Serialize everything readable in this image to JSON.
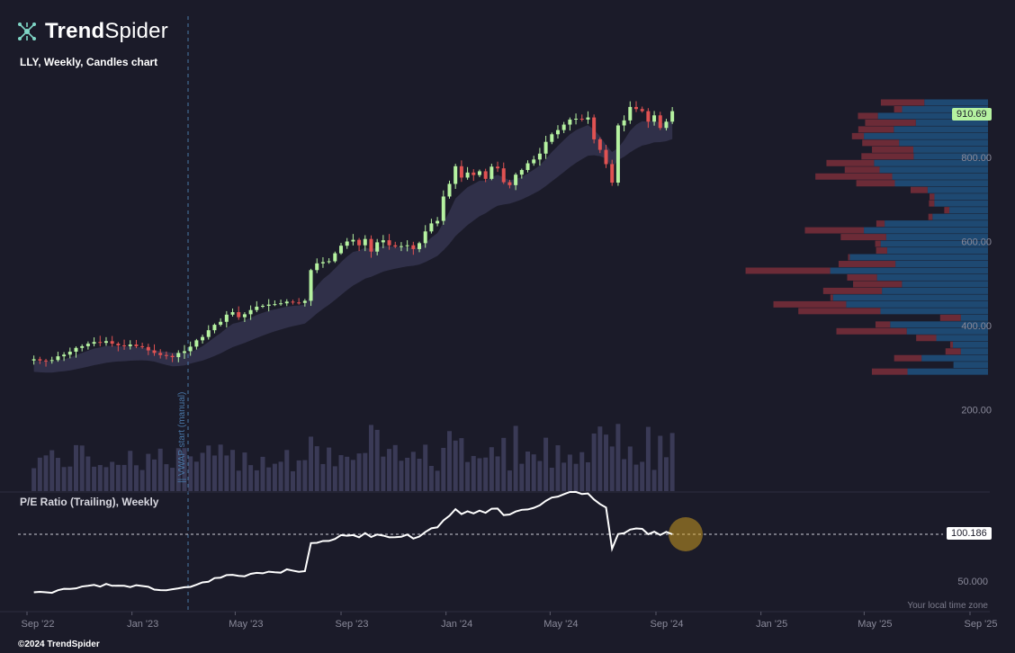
{
  "branding": {
    "logo_bold": "Trend",
    "logo_light": "Spider",
    "copyright": "©2024 TrendSpider"
  },
  "chart_title": "LLY, Weekly, Candles chart",
  "pe_title": "P/E Ratio (Trailing), Weekly",
  "timezone_note": "Your local time zone",
  "vwap_label": "|| VWAP start (manual)",
  "last_price_label": "910.69",
  "last_pe_label": "100.186",
  "colors": {
    "background": "#1b1b29",
    "up": "#b5f2a0",
    "down": "#e05252",
    "ribbon": "#33334d",
    "volume": "#3a3a56",
    "profile_blue": "#1f4f7a",
    "profile_red": "#7a2e3a",
    "pe_line": "#ffffff",
    "highlight": "#d9a520"
  },
  "chart_data": [
    {
      "type": "candlestick",
      "title": "LLY, Weekly, Candles chart",
      "y_ticks": [
        "200.00",
        "400.00",
        "600.00",
        "800.00"
      ],
      "y_tick_values": [
        200,
        400,
        600,
        800
      ],
      "x_ticks": [
        "Sep '22",
        "Jan '23",
        "May '23",
        "Sep '23",
        "Jan '24",
        "May '24",
        "Sep '24",
        "Jan '25",
        "May '25",
        "Sep '25"
      ],
      "x_range": [
        "2022-09-01",
        "2025-09-01"
      ],
      "close": [
        320,
        317,
        316,
        318,
        327,
        331,
        338,
        347,
        351,
        357,
        361,
        359,
        363,
        357,
        353,
        351,
        355,
        351,
        349,
        341,
        335,
        330,
        328,
        325,
        335,
        339,
        350,
        365,
        373,
        389,
        402,
        409,
        426,
        432,
        420,
        427,
        437,
        445,
        447,
        450,
        451,
        453,
        457,
        455,
        454,
        459,
        532,
        548,
        551,
        553,
        572,
        590,
        600,
        604,
        591,
        606,
        576,
        598,
        603,
        591,
        588,
        589,
        591,
        582,
        596,
        624,
        643,
        649,
        707,
        737,
        779,
        752,
        764,
        758,
        767,
        749,
        778,
        774,
        741,
        734,
        759,
        770,
        786,
        795,
        809,
        837,
        855,
        865,
        878,
        890,
        892,
        890,
        895,
        843,
        818,
        784,
        740,
        876,
        888,
        920,
        915,
        910,
        885,
        900,
        870,
        885,
        910
      ],
      "last_price": 910.69
    },
    {
      "type": "line",
      "title": "P/E Ratio (Trailing), Weekly",
      "y_ticks": [
        "50.000"
      ],
      "y_tick_values": [
        50
      ],
      "reference_line": 100.186,
      "last_value": 100.186
    }
  ]
}
